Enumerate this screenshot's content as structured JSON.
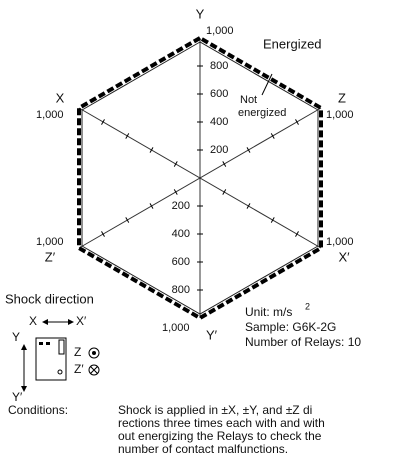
{
  "diagram": {
    "axes": {
      "top": {
        "name": "Y",
        "end": "1,000"
      },
      "upper_left": {
        "name": "X",
        "end": "1,000"
      },
      "upper_right": {
        "name": "Z",
        "end": "1,000"
      },
      "lower_left": {
        "name": "Z′",
        "end": "1,000"
      },
      "lower_right": {
        "name": "X′",
        "end": "1,000"
      },
      "bottom": {
        "name": "Y′",
        "end": "1,000"
      }
    },
    "ticks_upper": [
      800,
      600,
      400,
      200
    ],
    "ticks_lower": [
      200,
      400,
      600,
      800
    ],
    "axis_max": 1000,
    "legend": {
      "energized": "Energized",
      "not_energized_1": "Not",
      "not_energized_2": "energized"
    },
    "info": {
      "unit": "Unit: m/s",
      "unit_exponent": "2",
      "sample": "Sample: G6K-2G",
      "relays": "Number of Relays: 10"
    },
    "shock_direction": {
      "title": "Shock direction",
      "x": "X",
      "x_prime": "X′",
      "y": "Y",
      "y_prime": "Y′",
      "z": "Z",
      "z_prime": "Z′"
    },
    "conditions": {
      "label": "Conditions:",
      "lines": [
        "Shock is applied in ±X, ±Y, and ±Z di",
        "rections three times each with and with",
        "out energizing the Relays to check the",
        "number of contact malfunctions."
      ]
    }
  }
}
